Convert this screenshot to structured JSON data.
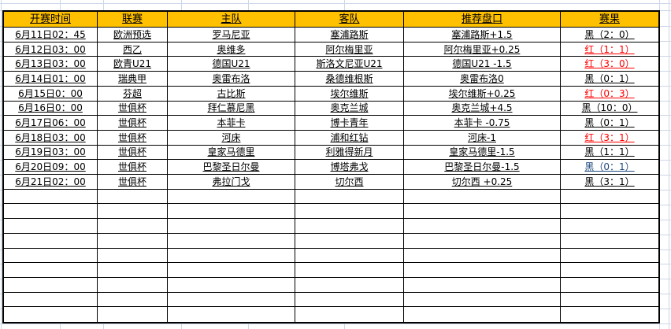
{
  "sheet": {
    "header_bg": "#FFC000",
    "grid_color": "#ccd7e8",
    "result_colors": {
      "black": "#000000",
      "red": "#FF0000",
      "blue": "#1F497D"
    },
    "columns": [
      "开赛时间",
      "联赛",
      "主队",
      "客队",
      "推荐盘口",
      "赛果"
    ],
    "rows": [
      {
        "time": "6月11日02：45",
        "league": "欧洲预选",
        "home": "罗马尼亚",
        "away": "塞浦路斯",
        "handicap": "塞浦路斯+1.5",
        "result": "黑（2：0）",
        "result_color": "black"
      },
      {
        "time": "6月12日03：00",
        "league": "西乙",
        "home": "奥维多",
        "away": "阿尔梅里亚",
        "handicap": "阿尔梅里亚+0.25",
        "result": "红（1：1）",
        "result_color": "red"
      },
      {
        "time": "6月13日03：00",
        "league": "欧青U21",
        "home": "德国U21",
        "away": "斯洛文尼亚U21",
        "handicap": "德国U21 -1.5",
        "result": "红（3：0）",
        "result_color": "red"
      },
      {
        "time": "6月14日01：00",
        "league": "瑞典甲",
        "home": "奥雷布洛",
        "away": "桑德维根斯",
        "handicap": "奥雷布洛0",
        "result": "黑（0：1）",
        "result_color": "black"
      },
      {
        "time": "6月15日0：00",
        "league": "芬超",
        "home": "古比斯",
        "away": "埃尔维斯",
        "handicap": "埃尔维斯+0.25",
        "result": "红（0：3）",
        "result_color": "red"
      },
      {
        "time": "6月16日0：00",
        "league": "世俱杯",
        "home": "拜仁慕尼黑",
        "away": "奥克兰城",
        "handicap": "奥克兰城+4.5",
        "result": "黑（10：0）",
        "result_color": "black"
      },
      {
        "time": "6月17日06：00",
        "league": "世俱杯",
        "home": "本菲卡",
        "away": "博卡青年",
        "handicap": "本菲卡 -0.75",
        "result": "黑（0：1）",
        "result_color": "black"
      },
      {
        "time": "6月18日03：00",
        "league": "世俱杯",
        "home": "河床",
        "away": "浦和红钻",
        "handicap": "河床-1",
        "result": "红（3：1）",
        "result_color": "red"
      },
      {
        "time": "6月19日03：00",
        "league": "世俱杯",
        "home": "皇家马德里",
        "away": "利雅得新月",
        "handicap": "皇家马德里-1.5",
        "result": "黑（1：1）",
        "result_color": "black"
      },
      {
        "time": "6月20日09：00",
        "league": "世俱杯",
        "home": "巴黎圣日尔曼",
        "away": "博塔弗戈",
        "handicap": "巴黎圣日尔曼-1.5",
        "result": "黑（0：1）",
        "result_color": "blue"
      },
      {
        "time": "6月21日02：00",
        "league": "世俱杯",
        "home": "弗拉门戈",
        "away": "切尔西",
        "handicap": "切尔西 +0.25",
        "result": "黑（3：1）",
        "result_color": "black"
      }
    ],
    "empty_rows": 9
  }
}
